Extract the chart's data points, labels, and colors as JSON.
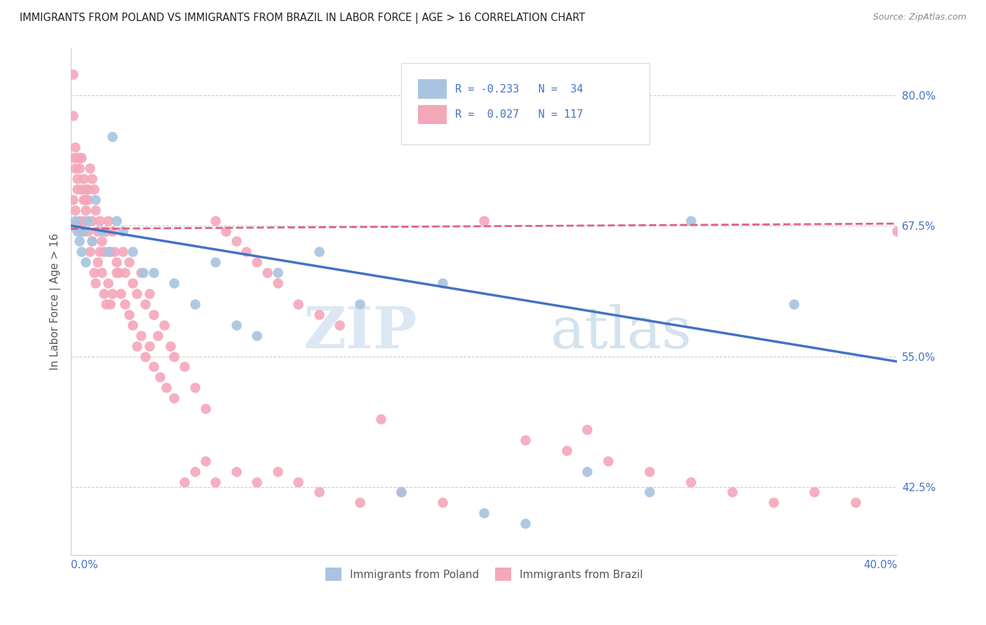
{
  "title": "IMMIGRANTS FROM POLAND VS IMMIGRANTS FROM BRAZIL IN LABOR FORCE | AGE > 16 CORRELATION CHART",
  "source": "Source: ZipAtlas.com",
  "ylabel": "In Labor Force | Age > 16",
  "legend_label_poland": "Immigrants from Poland",
  "legend_label_brazil": "Immigrants from Brazil",
  "R_poland": -0.233,
  "N_poland": 34,
  "R_brazil": 0.027,
  "N_brazil": 117,
  "color_poland": "#a8c4e0",
  "color_brazil": "#f4a7b9",
  "color_trend_poland": "#4472c4",
  "color_trend_brazil": "#e06080",
  "ytick_values": [
    0.8,
    0.675,
    0.55,
    0.425
  ],
  "ytick_labels": [
    "80.0%",
    "67.5%",
    "55.0%",
    "42.5%"
  ],
  "xlim": [
    0.0,
    0.4
  ],
  "ylim": [
    0.36,
    0.845
  ],
  "watermark_zip": "ZIP",
  "watermark_atlas": "atlas",
  "poland_trend_y0": 0.675,
  "poland_trend_y1": 0.545,
  "brazil_trend_y0": 0.672,
  "brazil_trend_y1": 0.677,
  "poland_scatter_x": [
    0.001,
    0.002,
    0.003,
    0.004,
    0.005,
    0.006,
    0.007,
    0.008,
    0.01,
    0.012,
    0.015,
    0.018,
    0.02,
    0.022,
    0.025,
    0.03,
    0.035,
    0.04,
    0.05,
    0.06,
    0.07,
    0.08,
    0.09,
    0.1,
    0.12,
    0.14,
    0.16,
    0.18,
    0.2,
    0.22,
    0.25,
    0.28,
    0.3,
    0.35
  ],
  "poland_scatter_y": [
    0.675,
    0.68,
    0.67,
    0.66,
    0.65,
    0.67,
    0.64,
    0.68,
    0.66,
    0.7,
    0.67,
    0.65,
    0.76,
    0.68,
    0.67,
    0.65,
    0.63,
    0.63,
    0.62,
    0.6,
    0.64,
    0.58,
    0.57,
    0.63,
    0.65,
    0.6,
    0.42,
    0.62,
    0.4,
    0.39,
    0.44,
    0.42,
    0.68,
    0.6
  ],
  "brazil_scatter_x": [
    0.001,
    0.001,
    0.001,
    0.002,
    0.002,
    0.003,
    0.003,
    0.004,
    0.004,
    0.005,
    0.005,
    0.006,
    0.006,
    0.007,
    0.007,
    0.008,
    0.008,
    0.009,
    0.01,
    0.01,
    0.011,
    0.012,
    0.013,
    0.014,
    0.015,
    0.016,
    0.017,
    0.018,
    0.019,
    0.02,
    0.021,
    0.022,
    0.023,
    0.025,
    0.026,
    0.028,
    0.03,
    0.032,
    0.034,
    0.036,
    0.038,
    0.04,
    0.042,
    0.045,
    0.048,
    0.05,
    0.055,
    0.06,
    0.065,
    0.07,
    0.075,
    0.08,
    0.085,
    0.09,
    0.095,
    0.1,
    0.11,
    0.12,
    0.13,
    0.001,
    0.002,
    0.003,
    0.004,
    0.005,
    0.006,
    0.007,
    0.008,
    0.009,
    0.01,
    0.011,
    0.012,
    0.013,
    0.014,
    0.015,
    0.016,
    0.017,
    0.018,
    0.019,
    0.02,
    0.022,
    0.024,
    0.026,
    0.028,
    0.03,
    0.032,
    0.034,
    0.036,
    0.038,
    0.04,
    0.043,
    0.046,
    0.05,
    0.055,
    0.06,
    0.065,
    0.07,
    0.08,
    0.09,
    0.1,
    0.11,
    0.12,
    0.14,
    0.16,
    0.18,
    0.2,
    0.22,
    0.24,
    0.26,
    0.28,
    0.3,
    0.32,
    0.34,
    0.36,
    0.38,
    0.4,
    0.15,
    0.25
  ],
  "brazil_scatter_y": [
    0.82,
    0.78,
    0.74,
    0.75,
    0.73,
    0.74,
    0.72,
    0.74,
    0.73,
    0.71,
    0.74,
    0.72,
    0.7,
    0.71,
    0.69,
    0.71,
    0.7,
    0.73,
    0.72,
    0.68,
    0.71,
    0.69,
    0.67,
    0.68,
    0.66,
    0.65,
    0.67,
    0.68,
    0.65,
    0.67,
    0.65,
    0.64,
    0.63,
    0.65,
    0.63,
    0.64,
    0.62,
    0.61,
    0.63,
    0.6,
    0.61,
    0.59,
    0.57,
    0.58,
    0.56,
    0.55,
    0.54,
    0.52,
    0.5,
    0.68,
    0.67,
    0.66,
    0.65,
    0.64,
    0.63,
    0.62,
    0.6,
    0.59,
    0.58,
    0.7,
    0.69,
    0.71,
    0.68,
    0.67,
    0.68,
    0.7,
    0.67,
    0.65,
    0.66,
    0.63,
    0.62,
    0.64,
    0.65,
    0.63,
    0.61,
    0.6,
    0.62,
    0.6,
    0.61,
    0.63,
    0.61,
    0.6,
    0.59,
    0.58,
    0.56,
    0.57,
    0.55,
    0.56,
    0.54,
    0.53,
    0.52,
    0.51,
    0.43,
    0.44,
    0.45,
    0.43,
    0.44,
    0.43,
    0.44,
    0.43,
    0.42,
    0.41,
    0.42,
    0.41,
    0.68,
    0.47,
    0.46,
    0.45,
    0.44,
    0.43,
    0.42,
    0.41,
    0.42,
    0.41,
    0.67,
    0.49,
    0.48
  ]
}
